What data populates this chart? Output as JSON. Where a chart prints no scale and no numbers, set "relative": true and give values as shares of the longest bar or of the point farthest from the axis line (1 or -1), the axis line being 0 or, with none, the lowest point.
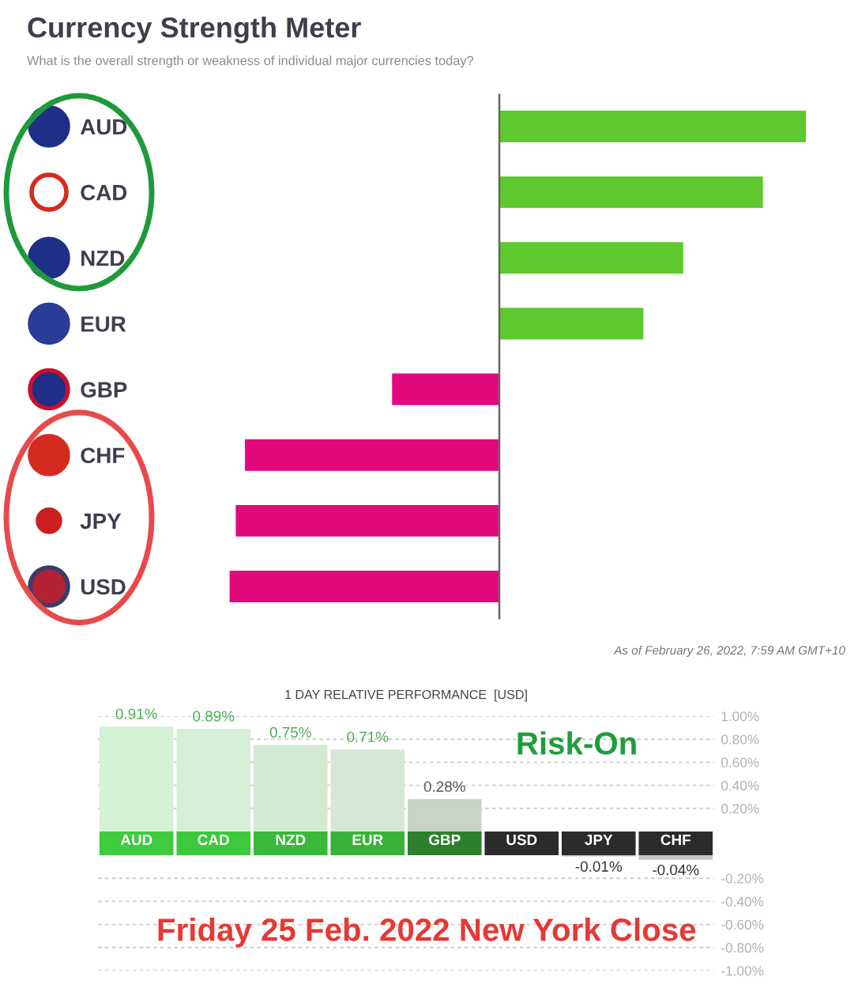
{
  "chart_data": [
    {
      "type": "bar",
      "orientation": "horizontal",
      "relative": true,
      "title": "Currency Strength Meter",
      "subtitle": "What is the overall strength or weakness of individual major currencies today?",
      "categories": [
        "AUD",
        "CAD",
        "NZD",
        "EUR",
        "GBP",
        "CHF",
        "JPY",
        "USD"
      ],
      "values": [
        1,
        0.86,
        0.6,
        0.47,
        -0.35,
        -0.83,
        -0.86,
        -0.88
      ],
      "colors": [
        "#5dc92f",
        "#5dc92f",
        "#5dc92f",
        "#5dc92f",
        "#e2087e",
        "#e2087e",
        "#e2087e",
        "#e2087e"
      ],
      "annotations": [
        "As of February 26, 2022, 7:59 AM GMT+10"
      ]
    },
    {
      "type": "bar",
      "title": "1 DAY RELATIVE PERFORMANCE  [USD]",
      "categories": [
        "AUD",
        "CAD",
        "NZD",
        "EUR",
        "GBP",
        "USD",
        "JPY",
        "CHF"
      ],
      "values": [
        0.91,
        0.89,
        0.75,
        0.71,
        0.28,
        null,
        null,
        null
      ],
      "colors": [
        "#d4f2d4",
        "#d5f0d5",
        "#d3ead3",
        "#d5e8d5",
        "#c7d4c7",
        null,
        null,
        null
      ],
      "value_labels": [
        "0.91%",
        "0.89%",
        "0.75%",
        "0.71%",
        "0.28%",
        null,
        null,
        null
      ],
      "ylim": [
        0,
        1.0
      ],
      "yticks": [
        {
          "value": 1.0,
          "label": "1.00%"
        },
        {
          "value": 0.8,
          "label": "0.80%"
        },
        {
          "value": 0.6,
          "label": "0.60%"
        },
        {
          "value": 0.4,
          "label": "0.40%"
        },
        {
          "value": 0.2,
          "label": "0.20%"
        }
      ],
      "grid": "y",
      "annotations": [
        "Risk-On"
      ]
    },
    {
      "type": "bar",
      "categories": [
        null,
        null,
        null,
        null,
        null,
        null,
        null,
        null
      ],
      "values": [
        null,
        null,
        null,
        null,
        null,
        null,
        -0.01,
        -0.04
      ],
      "colors": [
        null,
        null,
        null,
        null,
        null,
        null,
        "#c4c4c4",
        "#c4c4c4"
      ],
      "value_labels": [
        null,
        null,
        null,
        null,
        null,
        null,
        "-0.01%",
        "-0.04%"
      ],
      "ylim": [
        -1.0,
        0
      ],
      "yticks": [
        {
          "value": -0.2,
          "label": "-0.20%"
        },
        {
          "value": -0.4,
          "label": "-0.40%"
        },
        {
          "value": -0.6,
          "label": "-0.60%"
        },
        {
          "value": -0.8,
          "label": "-0.80%"
        },
        {
          "value": -1.0,
          "label": "-1.00%"
        }
      ],
      "grid": "y",
      "tick_labels": "y",
      "annotations": [
        "Friday 25 Feb. 2022 New York Close"
      ]
    }
  ]
}
